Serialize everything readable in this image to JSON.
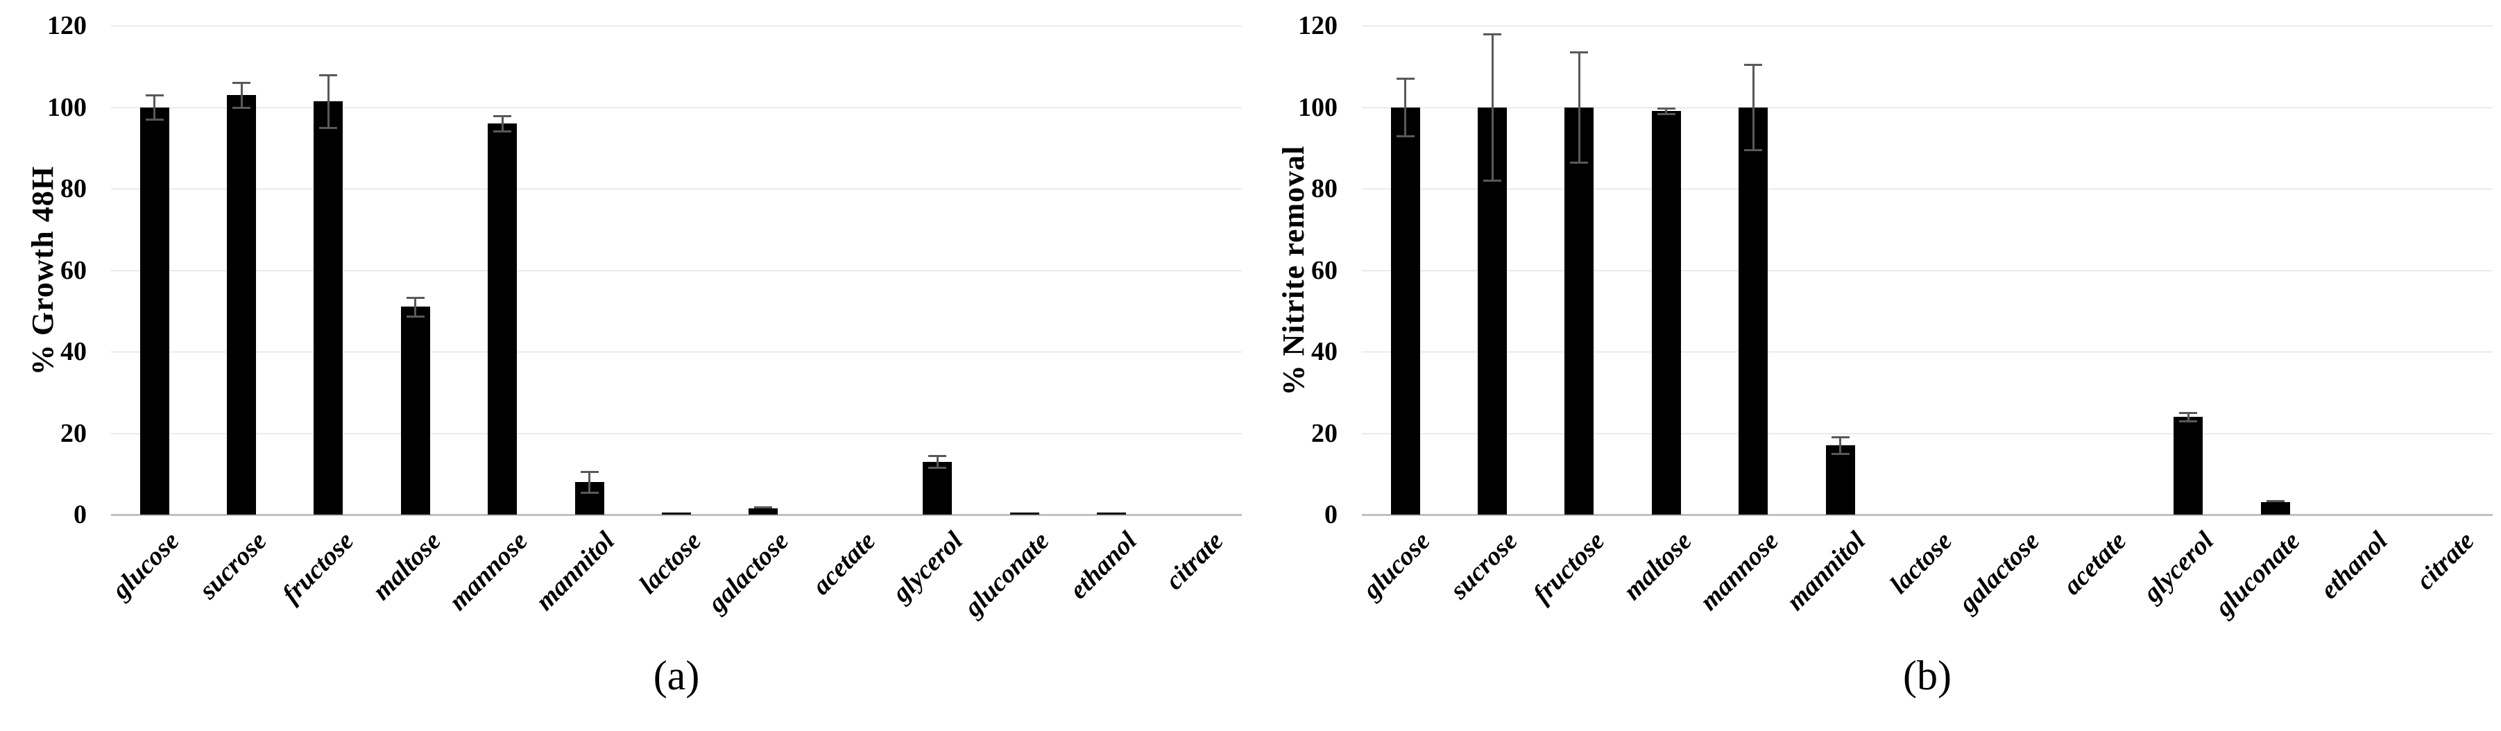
{
  "page": {
    "background_color": "#ffffff",
    "description_colors": {
      "bar_color": "#000000",
      "error_bar_color": "#595959",
      "gridline_color": "#d9d9d9",
      "axis_line_color": "#bfbfbf",
      "text_color": "#000000"
    }
  },
  "chart_data": [
    {
      "type": "bar",
      "panel_label": "(a)",
      "title": "",
      "xlabel": "",
      "ylabel": "% Growth 48H",
      "ylim": [
        0,
        120
      ],
      "yticks": [
        0,
        20,
        40,
        60,
        80,
        100,
        120
      ],
      "grid": true,
      "legend": "none",
      "categories": [
        "glucose",
        "sucrose",
        "fructose",
        "maltose",
        "mannose",
        "mannitol",
        "lactose",
        "galactose",
        "acetate",
        "glycerol",
        "gluconate",
        "ethanol",
        "citrate"
      ],
      "values": [
        100,
        103,
        101.5,
        51,
        96,
        8,
        0.5,
        1.5,
        0,
        13,
        0.5,
        0.5,
        0
      ],
      "errors": [
        3,
        3,
        6.5,
        2.3,
        1.8,
        2.5,
        0,
        0.4,
        0,
        1.5,
        0,
        0,
        0
      ]
    },
    {
      "type": "bar",
      "panel_label": "(b)",
      "title": "",
      "xlabel": "",
      "ylabel": "% Nitrite removal",
      "ylim": [
        0,
        120
      ],
      "yticks": [
        0,
        20,
        40,
        60,
        80,
        100,
        120
      ],
      "grid": true,
      "legend": "none",
      "categories": [
        "glucose",
        "sucrose",
        "fructose",
        "maltose",
        "mannose",
        "mannitol",
        "lactose",
        "galactose",
        "acetate",
        "glycerol",
        "gluconate",
        "ethanol",
        "citrate"
      ],
      "values": [
        100,
        100,
        100,
        99,
        100,
        17,
        0,
        0,
        0,
        24,
        3,
        0,
        0
      ],
      "errors": [
        7,
        18,
        13.5,
        0.7,
        10.5,
        2,
        0,
        0,
        0,
        1,
        0.4,
        0,
        0
      ]
    }
  ]
}
